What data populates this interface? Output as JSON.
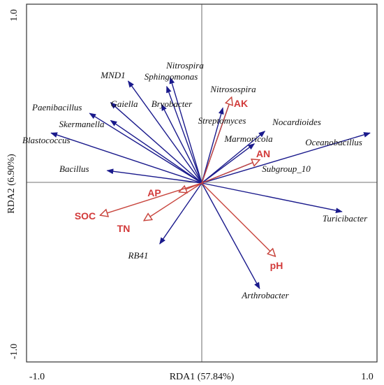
{
  "chart_data": {
    "type": "scatter",
    "xlabel": "RDA1 (57.84%)",
    "ylabel": "RDA2 (6.90%)",
    "xlim": [
      -1.0,
      1.0
    ],
    "ylim": [
      -1.0,
      1.0
    ],
    "x_tick_labels": [
      "-1.0",
      "1.0"
    ],
    "y_tick_labels": [
      "1.0",
      "-1.0"
    ],
    "colors": {
      "taxa": "#1a1a8c",
      "environment": "#c8463e"
    },
    "taxa_vectors": [
      {
        "name": "Nitrospira",
        "x": -0.18,
        "y": 0.59
      },
      {
        "name": "Sphingomonas",
        "x": -0.2,
        "y": 0.54
      },
      {
        "name": "MND1",
        "x": -0.42,
        "y": 0.57
      },
      {
        "name": "Gaiella",
        "x": -0.52,
        "y": 0.45
      },
      {
        "name": "Bryobacter",
        "x": -0.23,
        "y": 0.44
      },
      {
        "name": "Paenibacillus",
        "x": -0.64,
        "y": 0.39
      },
      {
        "name": "Skermanella",
        "x": -0.52,
        "y": 0.35
      },
      {
        "name": "Blastococcus",
        "x": -0.86,
        "y": 0.28
      },
      {
        "name": "Bacillus",
        "x": -0.54,
        "y": 0.07
      },
      {
        "name": "Nitrosospira",
        "x": 0.17,
        "y": 0.48
      },
      {
        "name": "Streptomyces",
        "x": 0.12,
        "y": 0.42
      },
      {
        "name": "Nocardioides",
        "x": 0.36,
        "y": 0.29
      },
      {
        "name": "Marmoricola",
        "x": 0.3,
        "y": 0.22
      },
      {
        "name": "Oceanobacillus",
        "x": 0.96,
        "y": 0.28
      },
      {
        "name": "Subgroup_10",
        "x": 0.33,
        "y": 0.13
      },
      {
        "name": "Turicibacter",
        "x": 0.8,
        "y": -0.16
      },
      {
        "name": "Arthrobacter",
        "x": 0.33,
        "y": -0.59
      },
      {
        "name": "RB41",
        "x": -0.24,
        "y": -0.34
      }
    ],
    "environment_vectors": [
      {
        "name": "AK",
        "x": 0.17,
        "y": 0.48
      },
      {
        "name": "AN",
        "x": 0.33,
        "y": 0.13
      },
      {
        "name": "AP",
        "x": -0.13,
        "y": -0.05
      },
      {
        "name": "SOC",
        "x": -0.58,
        "y": -0.18
      },
      {
        "name": "TN",
        "x": -0.33,
        "y": -0.21
      },
      {
        "name": "pH",
        "x": 0.42,
        "y": -0.41
      }
    ]
  }
}
